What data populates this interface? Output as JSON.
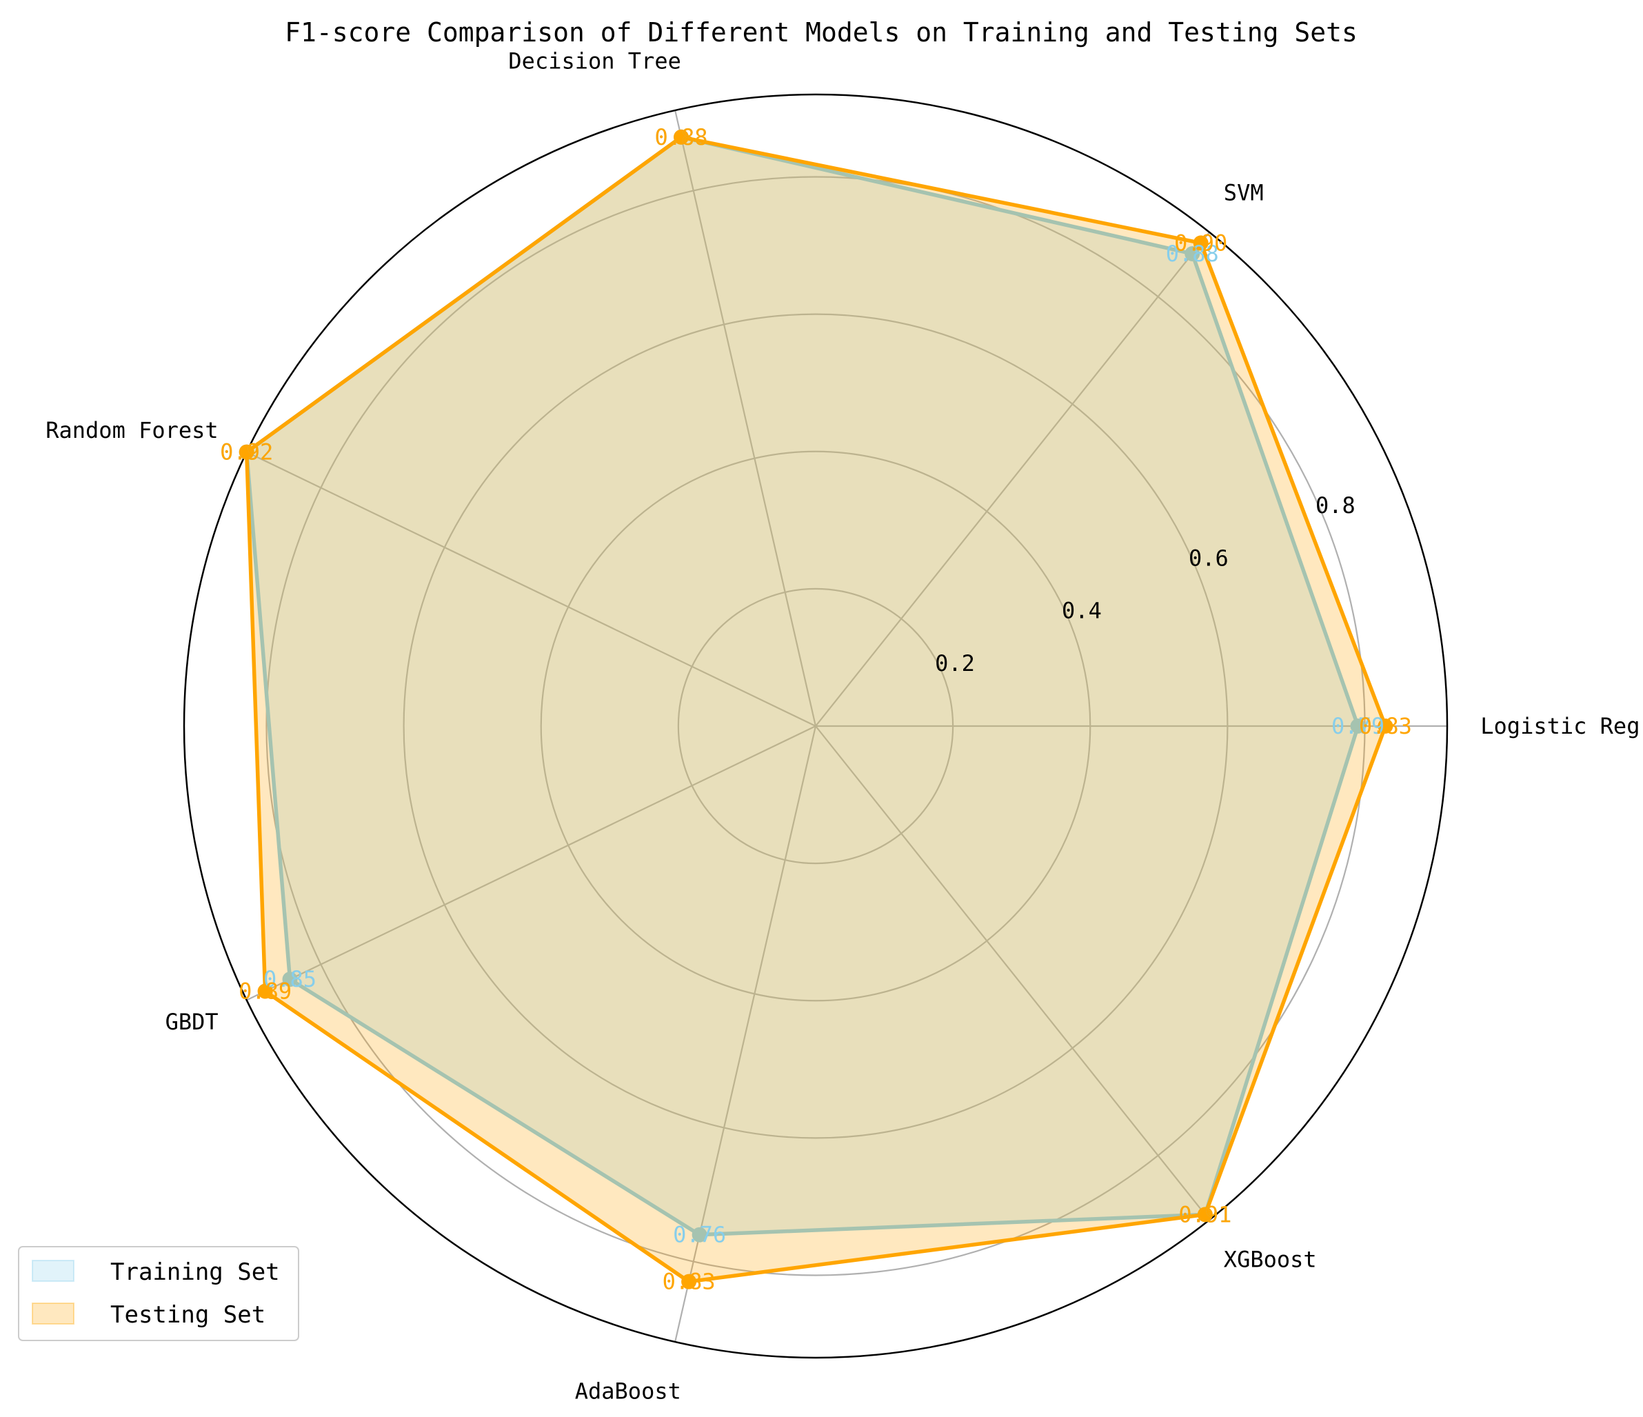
{
  "chart_data": {
    "type": "radar",
    "title": "F1-score Comparison of Different Models on Training and Testing Sets",
    "categories": [
      "Logistic Regression",
      "SVM",
      "Decision Tree",
      "Random Forest",
      "GBDT",
      "AdaBoost",
      "XGBoost"
    ],
    "series": [
      {
        "name": "Training Set",
        "values": [
          0.79,
          0.88,
          0.88,
          0.92,
          0.85,
          0.76,
          0.91
        ],
        "color": "#87ceeb"
      },
      {
        "name": "Testing Set",
        "values": [
          0.83,
          0.9,
          0.88,
          0.92,
          0.89,
          0.83,
          0.91
        ],
        "color": "#ffa500"
      }
    ],
    "r_ticks": [
      "0.2",
      "0.4",
      "0.6",
      "0.8"
    ],
    "rlim": [
      0,
      0.92
    ],
    "grid": true,
    "legend_position": "bottom-left"
  }
}
